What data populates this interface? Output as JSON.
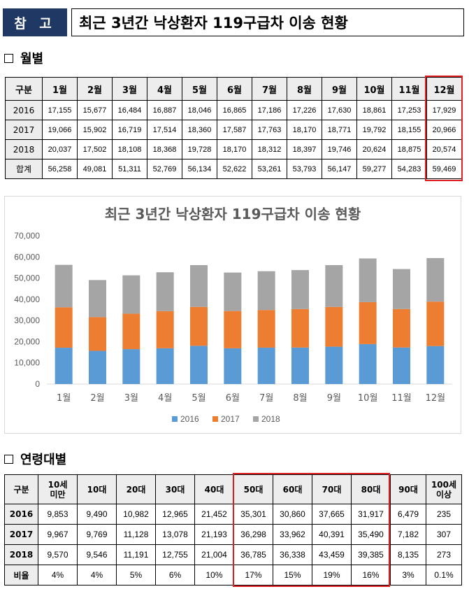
{
  "header": {
    "tag": "참 고",
    "title": "최근 3년간 낙상환자 119구급차 이송 현황"
  },
  "section_monthly": "월별",
  "section_age": "연령대별",
  "monthly_table": {
    "headers": [
      "구분",
      "1월",
      "2월",
      "3월",
      "4월",
      "5월",
      "6월",
      "7월",
      "8월",
      "9월",
      "10월",
      "11월",
      "12월"
    ],
    "rows": [
      {
        "label": "2016",
        "cells": [
          "17,155",
          "15,677",
          "16,484",
          "16,887",
          "18,046",
          "16,865",
          "17,186",
          "17,226",
          "17,630",
          "18,861",
          "17,253",
          "17,929"
        ]
      },
      {
        "label": "2017",
        "cells": [
          "19,066",
          "15,902",
          "16,719",
          "17,514",
          "18,360",
          "17,587",
          "17,763",
          "18,170",
          "18,771",
          "19,792",
          "18,155",
          "20,966"
        ]
      },
      {
        "label": "2018",
        "cells": [
          "20,037",
          "17,502",
          "18,108",
          "18,368",
          "19,728",
          "18,170",
          "18,312",
          "18,397",
          "19,746",
          "20,624",
          "18,875",
          "20,574"
        ]
      },
      {
        "label": "합계",
        "cells": [
          "56,258",
          "49,081",
          "51,311",
          "52,769",
          "56,134",
          "52,622",
          "53,261",
          "53,793",
          "56,147",
          "59,277",
          "54,283",
          "59,469"
        ]
      }
    ]
  },
  "age_table": {
    "headers": [
      "구분",
      "10세\n미만",
      "10대",
      "20대",
      "30대",
      "40대",
      "50대",
      "60대",
      "70대",
      "80대",
      "90대",
      "100세\n이상"
    ],
    "rows": [
      {
        "label": "2016",
        "cells": [
          "9,853",
          "9,490",
          "10,982",
          "12,965",
          "21,452",
          "35,301",
          "30,860",
          "37,665",
          "31,917",
          "6,479",
          "235"
        ]
      },
      {
        "label": "2017",
        "cells": [
          "9,967",
          "9,769",
          "11,128",
          "13,078",
          "21,193",
          "36,298",
          "33,962",
          "40,391",
          "35,490",
          "7,182",
          "307"
        ]
      },
      {
        "label": "2018",
        "cells": [
          "9,570",
          "9,546",
          "11,191",
          "12,755",
          "21,004",
          "36,785",
          "36,338",
          "43,459",
          "39,385",
          "8,135",
          "273"
        ]
      },
      {
        "label": "비율",
        "cells": [
          "4%",
          "4%",
          "5%",
          "6%",
          "10%",
          "17%",
          "15%",
          "19%",
          "16%",
          "3%",
          "0.1%"
        ]
      }
    ]
  },
  "chart_data": {
    "type": "bar",
    "stacked": true,
    "title": "최근 3년간 낙상환자 119구급차 이송 현황",
    "categories": [
      "1월",
      "2월",
      "3월",
      "4월",
      "5월",
      "6월",
      "7월",
      "8월",
      "9월",
      "10월",
      "11월",
      "12월"
    ],
    "series": [
      {
        "name": "2016",
        "color": "#5b9bd5",
        "values": [
          17155,
          15677,
          16484,
          16887,
          18046,
          16865,
          17186,
          17226,
          17630,
          18861,
          17253,
          17929
        ]
      },
      {
        "name": "2017",
        "color": "#ed7d31",
        "values": [
          19066,
          15902,
          16719,
          17514,
          18360,
          17587,
          17763,
          18170,
          18771,
          19792,
          18155,
          20966
        ]
      },
      {
        "name": "2018",
        "color": "#a5a5a5",
        "values": [
          20037,
          17502,
          18108,
          18368,
          19728,
          18170,
          18312,
          18397,
          19746,
          20624,
          18875,
          20574
        ]
      }
    ],
    "ylim": [
      0,
      70000
    ],
    "yticks": [
      "0",
      "10,000",
      "20,000",
      "30,000",
      "40,000",
      "50,000",
      "60,000",
      "70,000"
    ],
    "grid": false,
    "legend": "bottom"
  }
}
